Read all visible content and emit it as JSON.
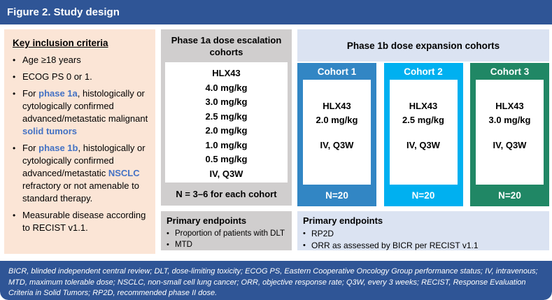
{
  "colors": {
    "header_bar": "#2f5596",
    "inclusion_bg": "#fbe5d6",
    "phase1a_bg": "#d0cece",
    "phase1b_bg": "#dbe3f2",
    "cohort1": "#3286c4",
    "cohort2": "#00b0f0",
    "cohort3": "#208765",
    "accent_text": "#4472c4"
  },
  "header": {
    "title": "Figure 2. Study design"
  },
  "inclusion": {
    "heading": "Key inclusion criteria",
    "bullets": [
      {
        "parts": [
          "Age ≥18 years"
        ]
      },
      {
        "parts": [
          "ECOG PS 0 or 1."
        ]
      },
      {
        "parts": [
          "For ",
          "phase 1a",
          ", histologically or cytologically confirmed advanced/metastatic malignant ",
          "solid tumors"
        ]
      },
      {
        "parts": [
          "For ",
          "phase 1b",
          ", histologically or cytologically confirmed advanced/metastatic ",
          "NSCLC",
          " refractory or not amenable to standard therapy."
        ]
      },
      {
        "parts": [
          "Measurable disease according to RECIST v1.1."
        ]
      }
    ]
  },
  "phase1a": {
    "header": "Phase 1a dose escalation cohorts",
    "drug": "HLX43",
    "doses": [
      "4.0 mg/kg",
      "3.0 mg/kg",
      "2.5 mg/kg",
      "2.0 mg/kg",
      "1.0 mg/kg",
      "0.5 mg/kg"
    ],
    "route": "IV, Q3W",
    "cohort_note": "N = 3–6 for each cohort",
    "endpoints": {
      "heading": "Primary endpoints",
      "bullets": [
        "Proportion of patients with DLT",
        "MTD"
      ]
    }
  },
  "phase1b": {
    "header": "Phase 1b dose expansion cohorts",
    "cohorts": [
      {
        "label": "Cohort 1",
        "drug": "HLX43",
        "dose": "2.0 mg/kg",
        "route": "IV, Q3W",
        "n": "N=20"
      },
      {
        "label": "Cohort 2",
        "drug": "HLX43",
        "dose": "2.5 mg/kg",
        "route": "IV, Q3W",
        "n": "N=20"
      },
      {
        "label": "Cohort 3",
        "drug": "HLX43",
        "dose": "3.0 mg/kg",
        "route": "IV, Q3W",
        "n": "N=20"
      }
    ],
    "endpoints": {
      "heading": "Primary endpoints",
      "bullets": [
        "RP2D",
        "ORR as assessed by BICR per RECIST v1.1"
      ]
    }
  },
  "footer": {
    "text": "BICR, blinded independent central review; DLT, dose-limiting toxicity; ECOG PS, Eastern Cooperative Oncology Group performance status; IV, intravenous; MTD, maximum tolerable dose; NSCLC, non-small cell lung cancer; ORR, objective response rate; Q3W, every 3 weeks; RECIST, Response Evaluation Criteria in Solid Tumors; RP2D, recommended phase II dose."
  }
}
